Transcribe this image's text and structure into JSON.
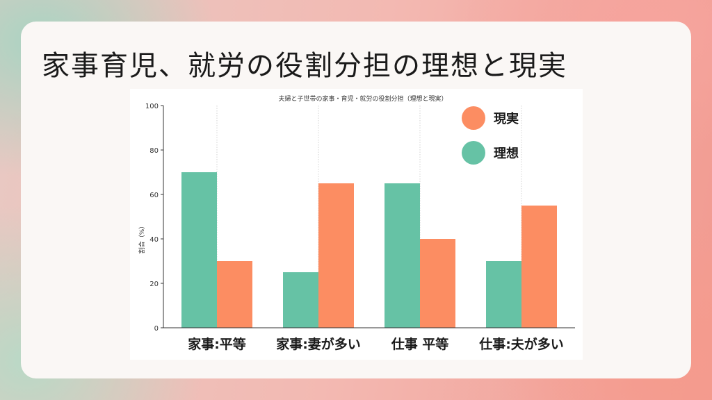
{
  "page": {
    "title": "家事育児、就労の役割分担の理想と現実"
  },
  "chart_data": {
    "type": "bar",
    "title": "夫婦と子世帯の家事・育児・就労の役割分担（理想と現実）",
    "ylabel": "割合（%）",
    "xlabel": "",
    "ylim": [
      0,
      100
    ],
    "yticks": [
      0,
      20,
      40,
      60,
      80,
      100
    ],
    "categories": [
      "家事:平等",
      "家事:妻が多い",
      "仕事 平等",
      "仕事:夫が多い"
    ],
    "series": [
      {
        "name": "理想",
        "color": "#66c2a5",
        "values": [
          70,
          25,
          65,
          30
        ]
      },
      {
        "name": "現実",
        "color": "#fc8d62",
        "values": [
          30,
          65,
          40,
          55
        ]
      }
    ],
    "legend_order": [
      "現実",
      "理想"
    ],
    "legend_placement": "top-right",
    "grid": "vertical-dotted"
  }
}
